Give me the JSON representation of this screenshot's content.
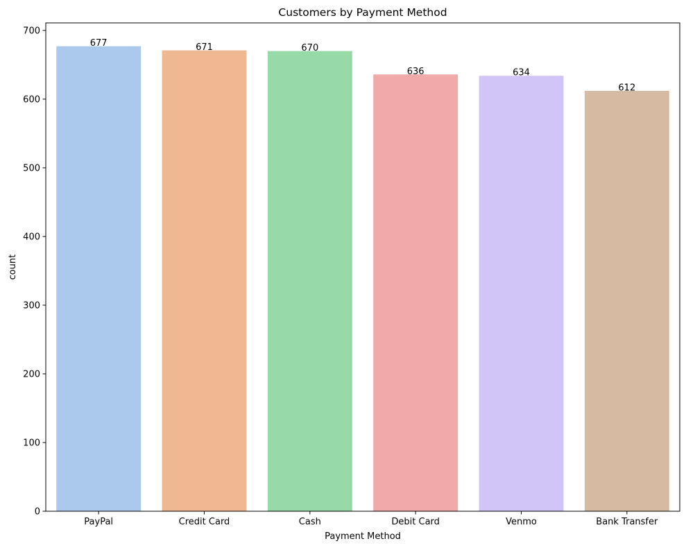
{
  "chart_data": {
    "type": "bar",
    "title": "Customers by Payment Method",
    "xlabel": "Payment Method",
    "ylabel": "count",
    "categories": [
      "PayPal",
      "Credit Card",
      "Cash",
      "Debit Card",
      "Venmo",
      "Bank Transfer"
    ],
    "values": [
      677,
      671,
      670,
      636,
      634,
      612
    ],
    "data_labels": [
      "677",
      "671",
      "670",
      "636",
      "634",
      "612"
    ],
    "bar_colors": [
      "#abc9ec",
      "#f0b793",
      "#98d9a8",
      "#f1aaa9",
      "#d1c4f6",
      "#d6bba2"
    ],
    "ylim": [
      0,
      711
    ],
    "yticks": [
      0,
      100,
      200,
      300,
      400,
      500,
      600,
      700
    ],
    "ytick_labels": [
      "0",
      "100",
      "200",
      "300",
      "400",
      "500",
      "600",
      "700"
    ],
    "grid": false,
    "legend": "none"
  }
}
